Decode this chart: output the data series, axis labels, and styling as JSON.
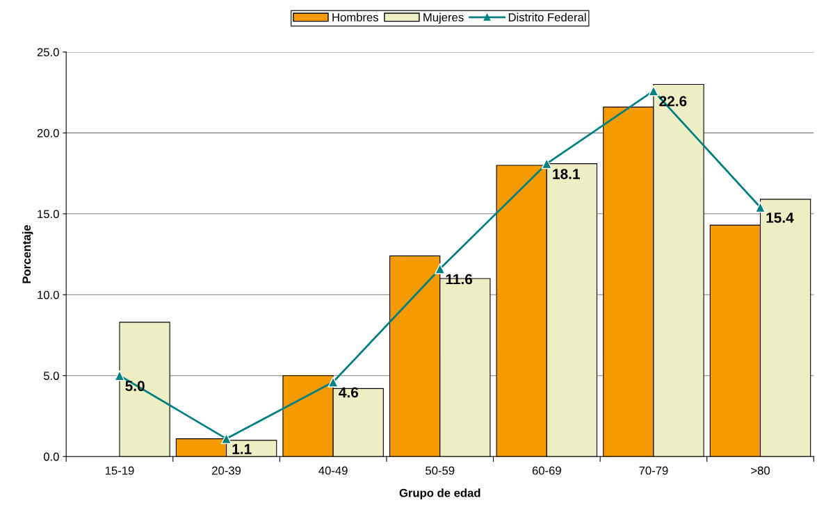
{
  "chart_data": {
    "type": "bar",
    "xlabel": "Grupo de edad",
    "ylabel": "Porcentaje",
    "categories": [
      "15-19",
      "20-39",
      "40-49",
      "50-59",
      "60-69",
      "70-79",
      ">80"
    ],
    "series": [
      {
        "name": "Hombres",
        "color": "#f59a00",
        "values": [
          null,
          1.1,
          5.0,
          12.4,
          18.0,
          21.6,
          14.3
        ]
      },
      {
        "name": "Mujeres",
        "color": "#eeeec4",
        "values": [
          8.3,
          1.0,
          4.2,
          11.0,
          18.1,
          23.0,
          15.9
        ]
      },
      {
        "name": "Distrito Federal",
        "type": "line",
        "color": "#008080",
        "marker": "triangle",
        "line_style": "solid",
        "values": [
          5.0,
          1.1,
          4.6,
          11.6,
          18.1,
          22.6,
          15.4
        ],
        "value_labels": [
          "5.0",
          "1.1",
          "4.6",
          "11.6",
          "18.1",
          "22.6",
          "15.4"
        ]
      }
    ],
    "ylim": [
      0,
      25
    ],
    "yticks": [
      {
        "value": 0,
        "label": "0.0"
      },
      {
        "value": 5,
        "label": "5.0"
      },
      {
        "value": 10,
        "label": "10.0"
      },
      {
        "value": 15,
        "label": "15.0"
      },
      {
        "value": 20,
        "label": "20.0"
      },
      {
        "value": 25,
        "label": "25.0"
      }
    ],
    "grid": "y",
    "legend": "top"
  }
}
